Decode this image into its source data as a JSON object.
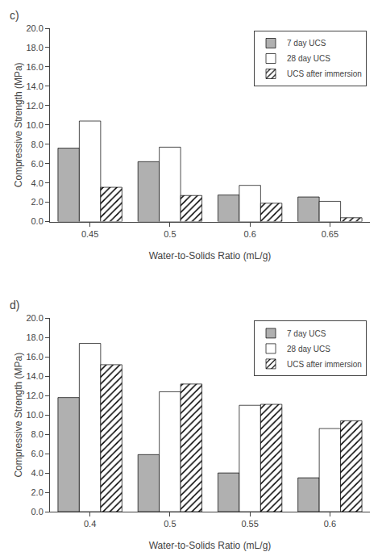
{
  "chart_data": [
    {
      "type": "bar",
      "title": "c)",
      "categories": [
        "0.45",
        "0.5",
        "0.6",
        "0.65"
      ],
      "series": [
        {
          "name": "7 day UCS",
          "color": "#b0b0b0",
          "values": [
            7.6,
            6.2,
            2.75,
            2.55
          ]
        },
        {
          "name": "28 day UCS",
          "color": "#ffffff",
          "values": [
            10.4,
            7.7,
            3.75,
            2.1
          ]
        },
        {
          "name": "UCS after immersion",
          "color": "#ffffff",
          "marker": "hatched",
          "values": [
            3.55,
            2.7,
            1.9,
            0.4
          ]
        }
      ],
      "xlabel": "Water-to-Solids Ratio (mL/g)",
      "ylabel": "Compressive Strength (MPa)",
      "ylim": [
        0,
        20
      ],
      "yticks": [
        {
          "value": 0,
          "label": "0.0"
        },
        {
          "value": 2,
          "label": "2.0"
        },
        {
          "value": 4,
          "label": "4.0"
        },
        {
          "value": 6,
          "label": "6.0"
        },
        {
          "value": 8,
          "label": "8.0"
        },
        {
          "value": 10,
          "label": "10.0"
        },
        {
          "value": 12,
          "label": "12.0"
        },
        {
          "value": 14,
          "label": "14.0"
        },
        {
          "value": 16,
          "label": "16.0"
        },
        {
          "value": 18,
          "label": "18.0"
        },
        {
          "value": 20,
          "label": "20.0"
        }
      ],
      "grid": false,
      "legend": "upper right"
    },
    {
      "type": "bar",
      "title": "d)",
      "categories": [
        "0.4",
        "0.5",
        "0.55",
        "0.6"
      ],
      "series": [
        {
          "name": "7 day UCS",
          "color": "#b0b0b0",
          "values": [
            11.8,
            5.9,
            4.0,
            3.5
          ]
        },
        {
          "name": "28 day UCS",
          "color": "#ffffff",
          "values": [
            17.4,
            12.4,
            11.0,
            8.6
          ]
        },
        {
          "name": "UCS after immersion",
          "color": "#ffffff",
          "marker": "hatched",
          "values": [
            15.2,
            13.2,
            11.1,
            9.4
          ]
        }
      ],
      "xlabel": "Water-to-Solids Ratio (mL/g)",
      "ylabel": "Compressive Strength (MPa)",
      "ylim": [
        0,
        20
      ],
      "yticks": [
        {
          "value": 0,
          "label": "0.0"
        },
        {
          "value": 2,
          "label": "2.0"
        },
        {
          "value": 4,
          "label": "4.0"
        },
        {
          "value": 6,
          "label": "6.0"
        },
        {
          "value": 8,
          "label": "8.0"
        },
        {
          "value": 10,
          "label": "10.0"
        },
        {
          "value": 12,
          "label": "12.0"
        },
        {
          "value": 14,
          "label": "14.0"
        },
        {
          "value": 16,
          "label": "16.0"
        },
        {
          "value": 18,
          "label": "18.0"
        },
        {
          "value": 20,
          "label": "20.0"
        }
      ],
      "grid": false,
      "legend": "upper right"
    }
  ]
}
